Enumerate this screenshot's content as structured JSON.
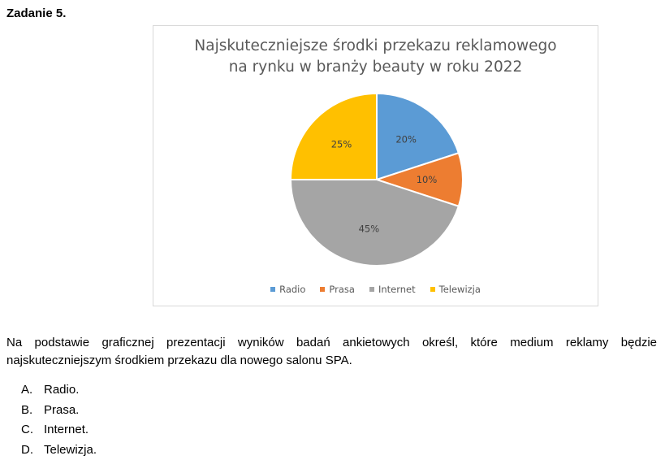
{
  "task_title": "Zadanie 5.",
  "chart_data": {
    "type": "pie",
    "title_lines": [
      "Najskuteczniejsze środki przekazu reklamowego",
      "na rynku w branży beauty w roku 2022"
    ],
    "categories": [
      "Radio",
      "Prasa",
      "Internet",
      "Telewizja"
    ],
    "values": [
      20,
      10,
      45,
      25
    ],
    "labels": [
      "20%",
      "10%",
      "45%",
      "25%"
    ],
    "colors": [
      "#5b9bd5",
      "#ed7d31",
      "#a5a5a5",
      "#ffc000"
    ],
    "legend_position": "bottom"
  },
  "question": "Na podstawie graficznej prezentacji wyników badań ankietowych określ, które medium reklamy będzie najskuteczniejszym środkiem przekazu dla nowego salonu SPA.",
  "answers": [
    {
      "letter": "A.",
      "text": "Radio."
    },
    {
      "letter": "B.",
      "text": "Prasa."
    },
    {
      "letter": "C.",
      "text": "Internet."
    },
    {
      "letter": "D.",
      "text": "Telewizja."
    }
  ]
}
